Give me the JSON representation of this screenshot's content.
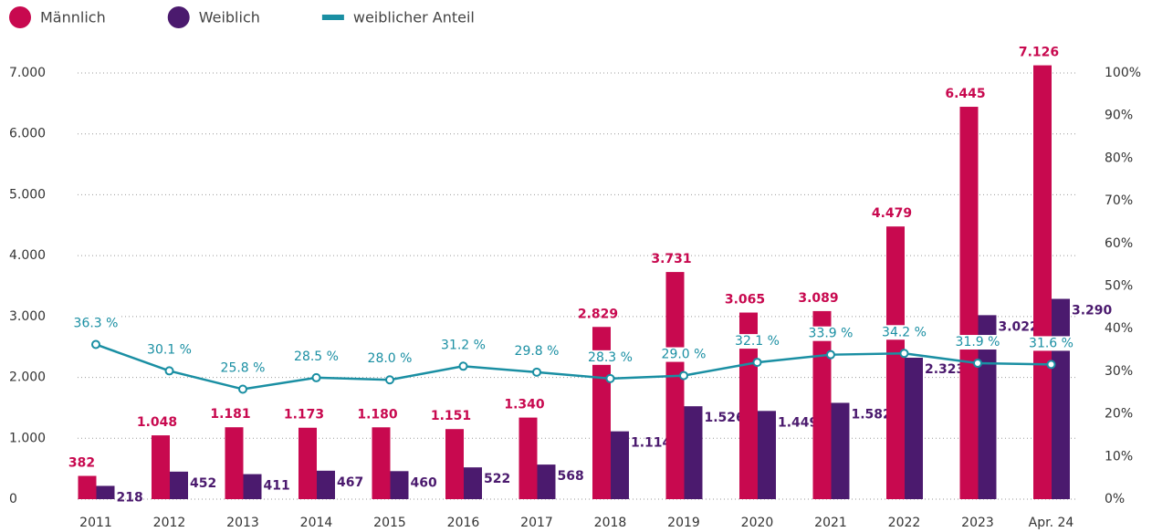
{
  "chart_data": {
    "type": "bar",
    "categories": [
      "2011",
      "2012",
      "2013",
      "2014",
      "2015",
      "2016",
      "2017",
      "2018",
      "2019",
      "2020",
      "2021",
      "2022",
      "2023",
      "Apr. 24"
    ],
    "series": [
      {
        "name": "Männlich",
        "color": "#c8094f",
        "values": [
          382,
          1048,
          1181,
          1173,
          1180,
          1151,
          1340,
          2829,
          3731,
          3065,
          3089,
          4479,
          6445,
          7126
        ],
        "value_labels": [
          "382",
          "1.048",
          "1.181",
          "1.173",
          "1.180",
          "1.151",
          "1.340",
          "2.829",
          "3.731",
          "3.065",
          "3.089",
          "4.479",
          "6.445",
          "7.126"
        ]
      },
      {
        "name": "Weiblich",
        "color": "#4b1a6e",
        "values": [
          218,
          452,
          411,
          467,
          460,
          522,
          568,
          1114,
          1526,
          1449,
          1582,
          2323,
          3022,
          3290
        ],
        "value_labels": [
          "218",
          "452",
          "411",
          "467",
          "460",
          "522",
          "568",
          "1.114",
          "1.526",
          "1.449",
          "1.582",
          "2.323",
          "3.022",
          "3.290"
        ]
      },
      {
        "name": "weiblicher Anteil",
        "type": "line",
        "axis": "y2",
        "color": "#1a8fa3",
        "values": [
          36.3,
          30.1,
          25.8,
          28.5,
          28.0,
          31.2,
          29.8,
          28.3,
          29.0,
          32.1,
          33.9,
          34.2,
          31.9,
          31.6
        ],
        "value_labels": [
          "36.3 %",
          "30.1 %",
          "25.8 %",
          "28.5 %",
          "28.0 %",
          "31.2 %",
          "29.8 %",
          "28.3 %",
          "29.0 %",
          "32.1 %",
          "33.9 %",
          "34.2 %",
          "31.9 %",
          "31.6 %"
        ]
      }
    ],
    "ylim": [
      0,
      7000
    ],
    "yticks": [
      0,
      {
        "value": 1000,
        "label": "1.000"
      },
      {
        "value": 2000,
        "label": "2.000"
      },
      {
        "value": 3000,
        "label": "3.000"
      },
      {
        "value": 4000,
        "label": "4.000"
      },
      {
        "value": 5000,
        "label": "5.000"
      },
      {
        "value": 6000,
        "label": "6.000"
      },
      {
        "value": 7000,
        "label": "7.000"
      }
    ],
    "y2lim": [
      0,
      100
    ],
    "y2ticks": [
      {
        "value": 0,
        "label": "0%"
      },
      {
        "value": 10,
        "label": "10%"
      },
      {
        "value": 20,
        "label": "20%"
      },
      {
        "value": 30,
        "label": "30%"
      },
      {
        "value": 40,
        "label": "40%"
      },
      {
        "value": 50,
        "label": "50%"
      },
      {
        "value": 60,
        "label": "60%"
      },
      {
        "value": 70,
        "label": "70%"
      },
      {
        "value": 80,
        "label": "80%"
      },
      {
        "value": 90,
        "label": "90%"
      },
      {
        "value": 100,
        "label": "100%"
      }
    ],
    "grid": true,
    "legend": "top-left"
  }
}
